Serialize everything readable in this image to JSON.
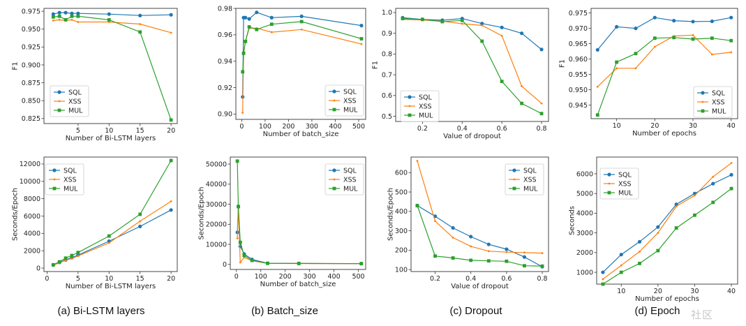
{
  "colors": {
    "SQL": "#1f77b4",
    "XSS": "#ff7f0e",
    "MUL": "#2ca02c"
  },
  "captions": [
    "(a) Bi-LSTM layers",
    "(b) Batch_size",
    "(c) Dropout",
    "(d) Epoch"
  ],
  "watermark": "社区",
  "chart_data": [
    {
      "type": "line",
      "xlabel": "Number of Bi-LSTM layers",
      "ylabel": "F1",
      "xlim": [
        -0.5,
        21
      ],
      "ylim": [
        0.818,
        0.979
      ],
      "xticks": [
        5,
        10,
        15,
        20
      ],
      "xtick_labels": [
        "5",
        "10",
        "15",
        "20"
      ],
      "yticks": [
        0.825,
        0.85,
        0.875,
        0.9,
        0.925,
        0.95,
        0.975
      ],
      "ytick_labels": [
        "0.825",
        "0.850",
        "0.875",
        "0.900",
        "0.925",
        "0.950",
        "0.975"
      ],
      "legend": "center-left",
      "grid": false,
      "x": [
        1,
        2,
        3,
        4,
        5,
        10,
        15,
        20
      ],
      "series": [
        {
          "name": "SQL",
          "values": [
            0.971,
            0.973,
            0.973,
            0.972,
            0.972,
            0.971,
            0.969,
            0.97
          ]
        },
        {
          "name": "XSS",
          "values": [
            0.962,
            0.963,
            0.962,
            0.963,
            0.96,
            0.96,
            0.957,
            0.945
          ]
        },
        {
          "name": "MUL",
          "values": [
            0.967,
            0.968,
            0.963,
            0.968,
            0.968,
            0.963,
            0.946,
            0.823
          ]
        }
      ]
    },
    {
      "type": "line",
      "xlabel": "Number of batch_size",
      "ylabel": "",
      "xlim": [
        -25,
        530
      ],
      "ylim": [
        0.896,
        0.98
      ],
      "xticks": [
        0,
        100,
        200,
        300,
        400,
        500
      ],
      "xtick_labels": [
        "0",
        "100",
        "200",
        "300",
        "400",
        "500"
      ],
      "yticks": [
        0.9,
        0.92,
        0.94,
        0.96,
        0.98
      ],
      "ytick_labels": [
        "0.90",
        "0.92",
        "0.94",
        "0.96",
        "0.98"
      ],
      "legend": "lower-right",
      "grid": false,
      "x": [
        4,
        8,
        16,
        32,
        64,
        128,
        256,
        512
      ],
      "series": [
        {
          "name": "SQL",
          "values": [
            0.913,
            0.973,
            0.973,
            0.972,
            0.977,
            0.973,
            0.974,
            0.967
          ]
        },
        {
          "name": "XSS",
          "values": [
            0.901,
            0.946,
            0.955,
            0.965,
            0.965,
            0.962,
            0.964,
            0.953
          ]
        },
        {
          "name": "MUL",
          "values": [
            0.932,
            0.946,
            0.955,
            0.966,
            0.964,
            0.968,
            0.97,
            0.957
          ]
        }
      ]
    },
    {
      "type": "line",
      "xlabel": "Value of dropout",
      "ylabel": "F1",
      "xlim": [
        0.065,
        0.835
      ],
      "ylim": [
        0.475,
        1.02
      ],
      "xticks": [
        0.2,
        0.4,
        0.6,
        0.8
      ],
      "xtick_labels": [
        "0.2",
        "0.4",
        "0.6",
        "0.8"
      ],
      "yticks": [
        0.5,
        0.6,
        0.7,
        0.8,
        0.9,
        1.0
      ],
      "ytick_labels": [
        "0.5",
        "0.6",
        "0.7",
        "0.8",
        "0.9",
        "1.0"
      ],
      "legend": "center-left",
      "grid": false,
      "x": [
        0.1,
        0.2,
        0.3,
        0.4,
        0.5,
        0.6,
        0.7,
        0.8
      ],
      "series": [
        {
          "name": "SQL",
          "values": [
            0.975,
            0.967,
            0.963,
            0.971,
            0.947,
            0.928,
            0.9,
            0.822
          ]
        },
        {
          "name": "XSS",
          "values": [
            0.967,
            0.964,
            0.958,
            0.946,
            0.938,
            0.888,
            0.645,
            0.562
          ]
        },
        {
          "name": "MUL",
          "values": [
            0.971,
            0.967,
            0.956,
            0.962,
            0.862,
            0.668,
            0.562,
            0.513
          ]
        }
      ]
    },
    {
      "type": "line",
      "xlabel": "Number of epochs",
      "ylabel": "F1",
      "xlim": [
        3.3,
        41.7
      ],
      "ylim": [
        0.9406,
        0.9765
      ],
      "xticks": [
        10,
        20,
        30,
        40
      ],
      "xtick_labels": [
        "10",
        "20",
        "30",
        "40"
      ],
      "yticks": [
        0.945,
        0.95,
        0.955,
        0.96,
        0.965,
        0.97,
        0.975
      ],
      "ytick_labels": [
        "0.945",
        "0.950",
        "0.955",
        "0.960",
        "0.965",
        "0.970",
        "0.975"
      ],
      "legend": "lower-right",
      "grid": false,
      "x": [
        5,
        10,
        15,
        20,
        25,
        30,
        35,
        40
      ],
      "series": [
        {
          "name": "SQL",
          "values": [
            0.963,
            0.9705,
            0.97,
            0.9735,
            0.9725,
            0.9722,
            0.9723,
            0.9735
          ]
        },
        {
          "name": "XSS",
          "values": [
            0.951,
            0.957,
            0.957,
            0.964,
            0.9675,
            0.9678,
            0.9615,
            0.9622
          ]
        },
        {
          "name": "MUL",
          "values": [
            0.9418,
            0.959,
            0.9618,
            0.9668,
            0.967,
            0.9665,
            0.9668,
            0.966
          ]
        }
      ]
    },
    {
      "type": "line",
      "xlabel": "Number of Bi-LSTM layers",
      "ylabel": "Seconds/Epoch",
      "xlim": [
        -0.5,
        21
      ],
      "ylim": [
        -400,
        12800
      ],
      "xticks": [
        0,
        5,
        10,
        15,
        20
      ],
      "xtick_labels": [
        "0",
        "5",
        "10",
        "15",
        "20"
      ],
      "yticks": [
        0,
        2000,
        4000,
        6000,
        8000,
        10000,
        12000
      ],
      "ytick_labels": [
        "0",
        "2000",
        "4000",
        "6000",
        "8000",
        "10000",
        "12000"
      ],
      "legend": "upper-left",
      "grid": false,
      "x": [
        1,
        2,
        3,
        4,
        5,
        10,
        15,
        20
      ],
      "series": [
        {
          "name": "SQL",
          "values": [
            350,
            650,
            950,
            1200,
            1500,
            3100,
            4800,
            6700
          ]
        },
        {
          "name": "XSS",
          "values": [
            330,
            600,
            900,
            1100,
            1400,
            2900,
            5400,
            7700
          ]
        },
        {
          "name": "MUL",
          "values": [
            380,
            720,
            1150,
            1450,
            1800,
            3700,
            6200,
            12400
          ]
        }
      ]
    },
    {
      "type": "line",
      "xlabel": "Number of batch_size",
      "ylabel": "Seconds/Epoch",
      "xlim": [
        -25,
        530
      ],
      "ylim": [
        -2500,
        53500
      ],
      "xticks": [
        0,
        100,
        200,
        300,
        400,
        500
      ],
      "xtick_labels": [
        "0",
        "100",
        "200",
        "300",
        "400",
        "500"
      ],
      "yticks": [
        0,
        10000,
        20000,
        30000,
        40000,
        50000
      ],
      "ytick_labels": [
        "0",
        "10000",
        "20000",
        "30000",
        "40000",
        "50000"
      ],
      "legend": "upper-right",
      "grid": false,
      "x": [
        4,
        8,
        16,
        32,
        64,
        128,
        256,
        512
      ],
      "series": [
        {
          "name": "SQL",
          "values": [
            16000,
            29000,
            9000,
            5200,
            2500,
            600,
            500,
            400
          ]
        },
        {
          "name": "XSS",
          "values": [
            13000,
            28500,
            1000,
            3500,
            1800,
            500,
            450,
            400
          ]
        },
        {
          "name": "MUL",
          "values": [
            51500,
            28800,
            11000,
            4500,
            2000,
            550,
            480,
            420
          ]
        }
      ]
    },
    {
      "type": "line",
      "xlabel": "Value of dropout",
      "ylabel": "Seconds/Epoch",
      "xlim": [
        0.065,
        0.835
      ],
      "ylim": [
        90,
        680
      ],
      "xticks": [
        0.2,
        0.4,
        0.6,
        0.8
      ],
      "xtick_labels": [
        "0.2",
        "0.4",
        "0.6",
        "0.8"
      ],
      "yticks": [
        100,
        200,
        300,
        400,
        500,
        600
      ],
      "ytick_labels": [
        "100",
        "200",
        "300",
        "400",
        "500",
        "600"
      ],
      "legend": "upper-right",
      "grid": false,
      "x": [
        0.1,
        0.2,
        0.3,
        0.4,
        0.5,
        0.6,
        0.7,
        0.8
      ],
      "series": [
        {
          "name": "SQL",
          "values": [
            430,
            375,
            315,
            270,
            230,
            205,
            165,
            115
          ]
        },
        {
          "name": "XSS",
          "values": [
            660,
            350,
            265,
            220,
            195,
            190,
            188,
            185
          ]
        },
        {
          "name": "MUL",
          "values": [
            430,
            170,
            160,
            148,
            145,
            143,
            120,
            118
          ]
        }
      ]
    },
    {
      "type": "line",
      "xlabel": "Number of epochs",
      "ylabel": "Seconds",
      "xlim": [
        3.3,
        41.7
      ],
      "ylim": [
        400,
        6850
      ],
      "xticks": [
        10,
        20,
        30,
        40
      ],
      "xtick_labels": [
        "10",
        "20",
        "30",
        "40"
      ],
      "yticks": [
        1000,
        2000,
        3000,
        4000,
        5000,
        6000
      ],
      "ytick_labels": [
        "1000",
        "2000",
        "3000",
        "4000",
        "5000",
        "6000"
      ],
      "legend": "upper-left",
      "grid": false,
      "x": [
        5,
        10,
        15,
        20,
        25,
        30,
        35,
        40
      ],
      "series": [
        {
          "name": "SQL",
          "values": [
            1000,
            1900,
            2550,
            3300,
            4450,
            5000,
            5500,
            5950
          ]
        },
        {
          "name": "XSS",
          "values": [
            650,
            1350,
            2050,
            3000,
            4350,
            4900,
            5850,
            6550
          ]
        },
        {
          "name": "MUL",
          "values": [
            400,
            1000,
            1450,
            2100,
            3250,
            3900,
            4550,
            5250
          ]
        }
      ]
    }
  ]
}
